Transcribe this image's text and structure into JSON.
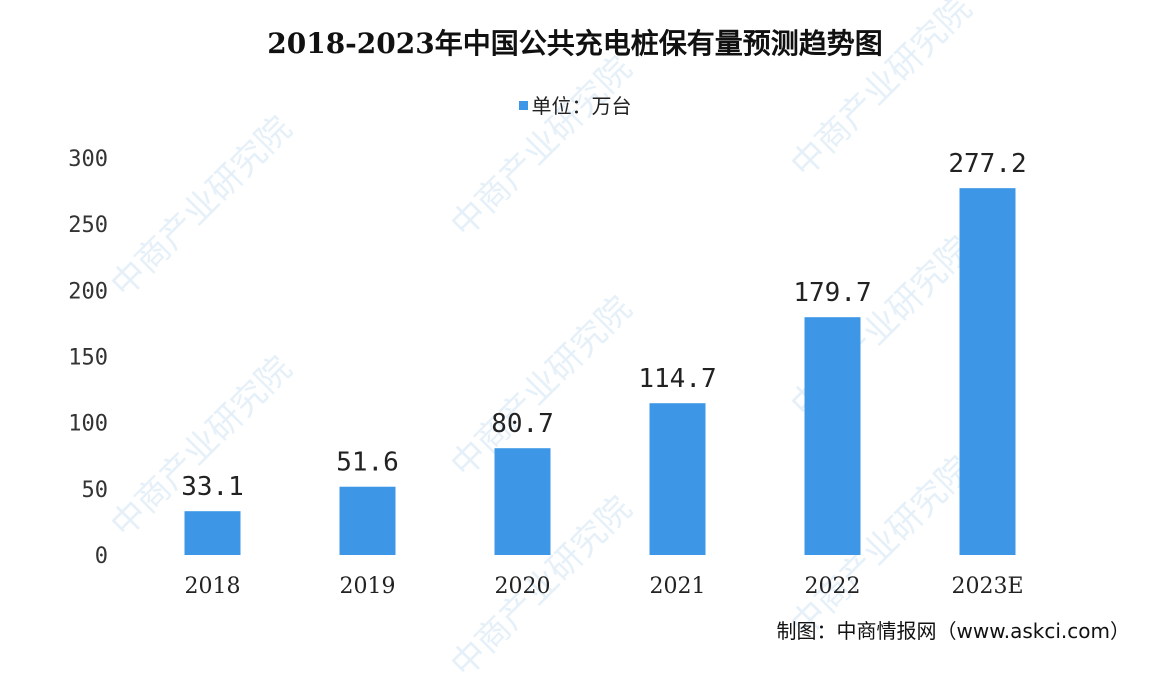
{
  "chart_data": {
    "type": "bar",
    "title": "2018-2023年中国公共充电桩保有量预测趋势图",
    "legend": {
      "label": "单位：万台",
      "position": "top-center"
    },
    "categories": [
      "2018",
      "2019",
      "2020",
      "2021",
      "2022",
      "2023E"
    ],
    "series": [
      {
        "values": [
          33.1,
          51.6,
          80.7,
          114.7,
          179.7,
          277.2
        ]
      }
    ],
    "data_labels": [
      "33.1",
      "51.6",
      "80.7",
      "114.7",
      "179.7",
      "277.2"
    ],
    "yticks": [
      0,
      50,
      100,
      150,
      200,
      250,
      300
    ],
    "ylim": [
      0,
      300
    ],
    "xlabel": "",
    "ylabel": "",
    "grid": false,
    "bar_color": "#3d97e6"
  },
  "source": "制图：中商情报网（www.askci.com）",
  "watermark": "中商产业研究院"
}
